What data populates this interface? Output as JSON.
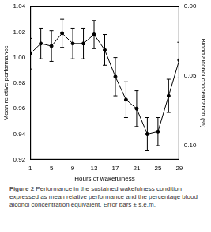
{
  "chart_data": {
    "type": "line",
    "x_label": "Hours of wakefulness",
    "y_label": "Mean relative performance",
    "y2_label": "Blood alcohol concentration (%)",
    "caption_label": "Figure 2",
    "caption": "Performance in the sustained wakefulness condition expressed as mean relative performance and the percentage blood alcohol concentration equivalent. Error bars ± s.e.m.",
    "x": [
      1,
      3,
      5,
      7,
      9,
      11,
      13,
      15,
      17,
      19,
      21,
      23,
      25,
      27,
      29
    ],
    "values": [
      1.003,
      1.011,
      1.009,
      1.019,
      1.011,
      1.011,
      1.018,
      1.006,
      0.985,
      0.967,
      0.96,
      0.94,
      0.942,
      0.97,
      0.998
    ],
    "errors": [
      0.012,
      0.012,
      0.012,
      0.011,
      0.012,
      0.012,
      0.011,
      0.012,
      0.015,
      0.014,
      0.014,
      0.013,
      0.011,
      0.013,
      0.014
    ],
    "color": "#000000",
    "marker": "circle",
    "xlim": [
      1,
      29
    ],
    "xticks": [
      1,
      5,
      9,
      13,
      17,
      21,
      25,
      29
    ],
    "ylim": [
      0.92,
      1.04
    ],
    "yticks": [
      0.92,
      0.94,
      0.96,
      0.98,
      {
        "value": 1,
        "label": "1.00"
      },
      1.02,
      1.04
    ],
    "y2lim": [
      0.11,
      0
    ],
    "y2ticks": [
      {
        "value": 0,
        "label": "0.00"
      },
      {
        "value": 0.05,
        "label": "0.05"
      },
      {
        "value": 0.1,
        "label": "0.10"
      }
    ],
    "grid": false
  }
}
